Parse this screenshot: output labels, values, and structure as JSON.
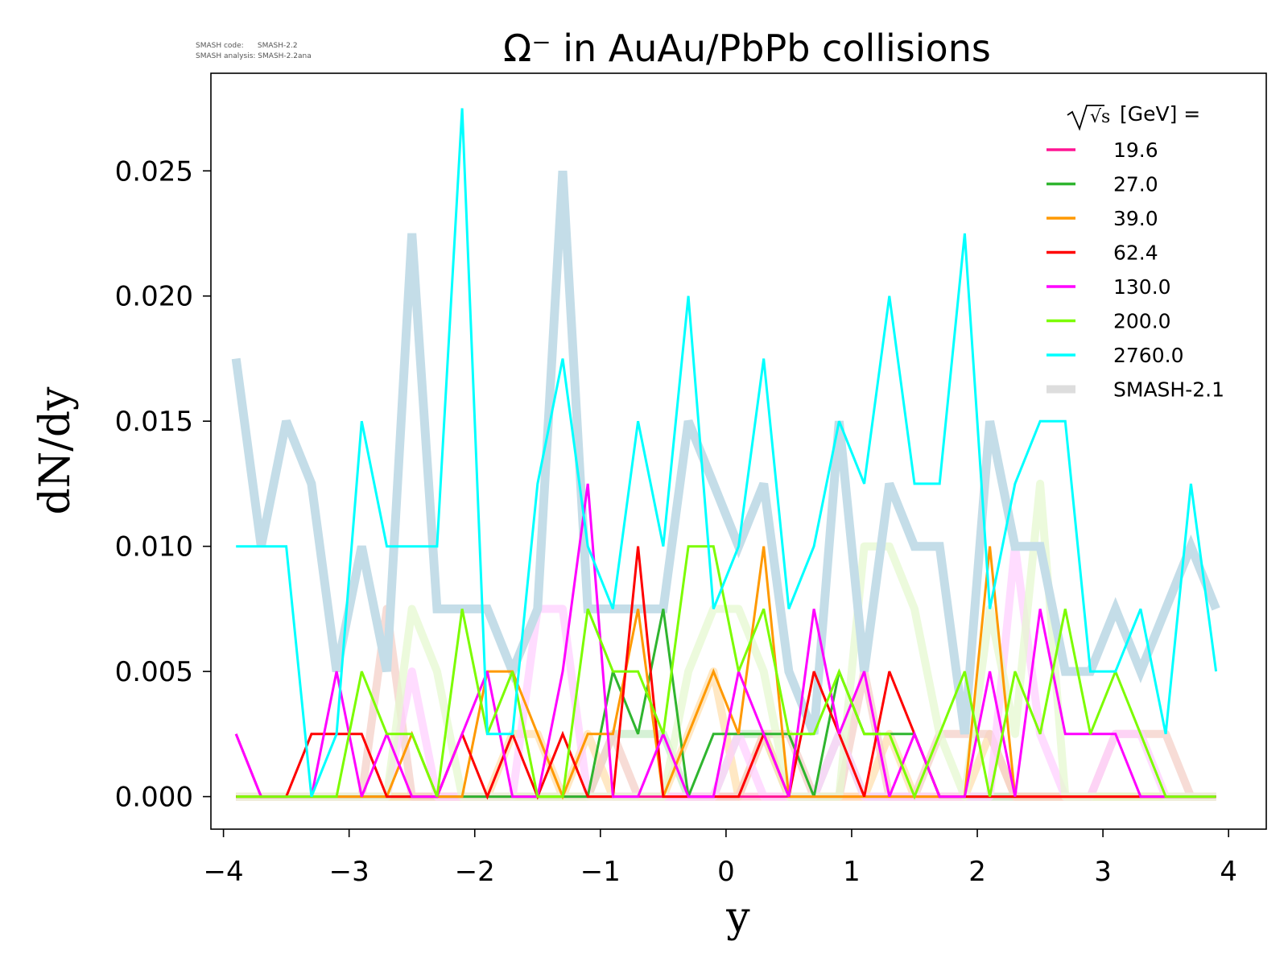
{
  "watermark": {
    "line1": "SMASH code:      SMASH-2.2",
    "line2": "SMASH analysis: SMASH-2.2ana"
  },
  "chart_data": {
    "type": "line",
    "title": "Ω⁻ in AuAu/PbPb collisions",
    "xlabel": "y",
    "ylabel": "dN/dy",
    "xlim": [
      -4.1,
      4.3
    ],
    "ylim": [
      -0.0013,
      0.0289
    ],
    "xticks": [
      -4,
      -3,
      -2,
      -1,
      0,
      1,
      2,
      3,
      4
    ],
    "xtick_labels": [
      "−4",
      "−3",
      "−2",
      "−1",
      "0",
      "1",
      "2",
      "3",
      "4"
    ],
    "yticks": [
      0.0,
      0.005,
      0.01,
      0.015,
      0.02,
      0.025
    ],
    "ytick_labels": [
      "0.000",
      "0.005",
      "0.010",
      "0.015",
      "0.020",
      "0.025"
    ],
    "grid": false,
    "legend": {
      "title_prefix": "√s",
      "title_suffix": "[GeV] =",
      "placement": "top-right"
    },
    "x": [
      -3.9,
      -3.7,
      -3.5,
      -3.3,
      -3.1,
      -2.9,
      -2.7,
      -2.5,
      -2.3,
      -2.1,
      -1.9,
      -1.7,
      -1.5,
      -1.3,
      -1.1,
      -0.9,
      -0.7,
      -0.5,
      -0.3,
      -0.1,
      0.1,
      0.3,
      0.5,
      0.7,
      0.9,
      1.1,
      1.3,
      1.5,
      1.7,
      1.9,
      2.1,
      2.3,
      2.5,
      2.7,
      2.9,
      3.1,
      3.3,
      3.5,
      3.7,
      3.9
    ],
    "series": [
      {
        "name": "19.6",
        "color": "#ff1493",
        "width": 3,
        "values": [
          0.0025,
          0,
          0,
          0,
          0,
          0,
          0,
          0,
          0,
          0,
          0,
          0,
          0,
          0,
          0,
          0,
          0,
          0,
          0,
          0,
          0,
          0,
          0,
          0,
          0,
          0,
          0,
          0,
          0,
          0,
          0,
          0,
          0,
          0,
          0,
          0,
          0,
          0,
          0,
          0
        ]
      },
      {
        "name": "27.0",
        "color": "#2fb52f",
        "width": 3,
        "values": [
          0,
          0,
          0,
          0,
          0,
          0,
          0,
          0,
          0,
          0,
          0,
          0,
          0,
          0,
          0,
          0.005,
          0.0025,
          0.0075,
          0,
          0.0025,
          0.0025,
          0.0025,
          0.0025,
          0,
          0.005,
          0.0025,
          0.0025,
          0.0025,
          0,
          0,
          0,
          0,
          0,
          0,
          0,
          0,
          0,
          0,
          0,
          0
        ]
      },
      {
        "name": "39.0",
        "color": "#ff9900",
        "width": 3,
        "values": [
          0,
          0,
          0,
          0,
          0,
          0,
          0,
          0.0025,
          0,
          0,
          0.005,
          0.005,
          0.0025,
          0,
          0.0025,
          0.0025,
          0.0075,
          0,
          0.0025,
          0.005,
          0.0025,
          0.01,
          0,
          0,
          0,
          0,
          0,
          0,
          0,
          0,
          0.01,
          0,
          0,
          0,
          0,
          0,
          0,
          0,
          0,
          0
        ]
      },
      {
        "name": "62.4",
        "color": "#ff0000",
        "width": 3,
        "values": [
          0,
          0,
          0,
          0.0025,
          0.0025,
          0.0025,
          0,
          0,
          0,
          0.0025,
          0,
          0.0025,
          0,
          0.0025,
          0,
          0,
          0.01,
          0,
          0,
          0,
          0,
          0.0025,
          0,
          0.005,
          0.0025,
          0,
          0.005,
          0.0025,
          0,
          0,
          0,
          0,
          0,
          0,
          0,
          0,
          0,
          0,
          0,
          0
        ]
      },
      {
        "name": "130.0",
        "color": "#ff00ff",
        "width": 3,
        "values": [
          0.0025,
          0,
          0,
          0,
          0.005,
          0,
          0.0025,
          0,
          0,
          0.0025,
          0.005,
          0,
          0,
          0.005,
          0.0125,
          0,
          0,
          0.0025,
          0,
          0,
          0.005,
          0.0025,
          0,
          0.0075,
          0.0025,
          0.005,
          0,
          0.0025,
          0,
          0,
          0.005,
          0,
          0.0075,
          0.0025,
          0.0025,
          0.0025,
          0,
          0,
          0,
          0
        ]
      },
      {
        "name": "200.0",
        "color": "#7cfc00",
        "width": 3,
        "values": [
          0,
          0,
          0,
          0,
          0,
          0.005,
          0.0025,
          0.0025,
          0,
          0.0075,
          0.0025,
          0.005,
          0,
          0,
          0.0075,
          0.005,
          0.005,
          0.0025,
          0.01,
          0.01,
          0.005,
          0.0075,
          0.0025,
          0.0025,
          0.005,
          0.0025,
          0.0025,
          0,
          0.0025,
          0.005,
          0,
          0.005,
          0.0025,
          0.0075,
          0.0025,
          0.005,
          0.0025,
          0,
          0,
          0
        ]
      },
      {
        "name": "2760.0",
        "color": "#00ffff",
        "width": 3,
        "values": [
          0.01,
          0.01,
          0.01,
          0,
          0.0025,
          0.015,
          0.01,
          0.01,
          0.01,
          0.0275,
          0.0025,
          0.0025,
          0.0125,
          0.0175,
          0.01,
          0.0075,
          0.015,
          0.01,
          0.02,
          0.0075,
          0.01,
          0.0175,
          0.0075,
          0.01,
          0.015,
          0.0125,
          0.02,
          0.0125,
          0.0125,
          0.0225,
          0.0075,
          0.0125,
          0.015,
          0.015,
          0.005,
          0.005,
          0.0075,
          0.0025,
          0.0125,
          0.005
        ]
      },
      {
        "name": "SMASH-2.1",
        "color": "#c4dde8",
        "width": 11,
        "legend_color": "#dddddd",
        "values": [
          0.0175,
          0.01,
          0.015,
          0.0125,
          0.005,
          0.01,
          0.005,
          0.0225,
          0.0075,
          0.0075,
          0.0075,
          0.005,
          0.0075,
          0.025,
          0.0075,
          0.0075,
          0.0075,
          0.0075,
          0.015,
          0.0125,
          0.01,
          0.0125,
          0.005,
          0.0025,
          0.015,
          0.005,
          0.0125,
          0.01,
          0.01,
          0.0025,
          0.015,
          0.01,
          0.01,
          0.005,
          0.005,
          0.0075,
          0.005,
          0.0075,
          0.01,
          0.0075
        ]
      }
    ],
    "reference_series": [
      {
        "color": "#ffbfd0",
        "width": 10,
        "values": [
          0,
          0,
          0,
          0,
          0,
          0,
          0,
          0,
          0,
          0,
          0,
          0,
          0,
          0,
          0,
          0,
          0,
          0,
          0,
          0,
          0,
          0,
          0,
          0,
          0,
          0,
          0,
          0,
          0,
          0,
          0,
          0,
          0,
          0,
          0,
          0,
          0,
          0,
          0,
          0
        ]
      },
      {
        "color": "#c8ecc8",
        "width": 10,
        "values": [
          0,
          0,
          0,
          0,
          0,
          0,
          0,
          0,
          0,
          0,
          0,
          0,
          0,
          0,
          0,
          0.0025,
          0.0025,
          0.0025,
          0,
          0,
          0.0025,
          0.0025,
          0,
          0,
          0.0025,
          0,
          0,
          0,
          0,
          0,
          0,
          0,
          0,
          0,
          0,
          0,
          0,
          0,
          0,
          0
        ]
      },
      {
        "color": "#ffe0b0",
        "width": 10,
        "values": [
          0,
          0,
          0,
          0,
          0,
          0,
          0,
          0,
          0,
          0,
          0,
          0.0025,
          0.0025,
          0,
          0.0025,
          0,
          0,
          0,
          0.0025,
          0.005,
          0,
          0.0025,
          0,
          0,
          0,
          0,
          0.0025,
          0,
          0,
          0,
          0.0025,
          0,
          0,
          0,
          0,
          0,
          0,
          0,
          0,
          0
        ]
      },
      {
        "color": "#f4d0c8",
        "width": 10,
        "values": [
          0,
          0,
          0,
          0,
          0,
          0,
          0.0075,
          0,
          0,
          0,
          0,
          0,
          0,
          0,
          0,
          0.0025,
          0,
          0,
          0,
          0,
          0,
          0.0025,
          0.0025,
          0,
          0,
          0.005,
          0,
          0,
          0.0025,
          0.0025,
          0.0025,
          0,
          0,
          0,
          0,
          0.0025,
          0.0025,
          0.0025,
          0,
          0
        ]
      },
      {
        "color": "#ffd0ff",
        "width": 10,
        "values": [
          0,
          0,
          0,
          0,
          0,
          0,
          0,
          0.005,
          0,
          0,
          0,
          0,
          0.0075,
          0.0075,
          0,
          0,
          0,
          0,
          0,
          0,
          0.0025,
          0,
          0,
          0,
          0.0025,
          0,
          0,
          0,
          0,
          0,
          0,
          0.01,
          0.0025,
          0,
          0,
          0.0025,
          0.0025,
          0,
          0,
          0
        ]
      },
      {
        "color": "#e6f8d0",
        "width": 10,
        "values": [
          0,
          0,
          0,
          0,
          0,
          0,
          0,
          0.0075,
          0.005,
          0,
          0,
          0,
          0,
          0,
          0,
          0,
          0,
          0,
          0.005,
          0.0075,
          0.0075,
          0.005,
          0,
          0,
          0,
          0.01,
          0.01,
          0.0075,
          0.0025,
          0,
          0.0075,
          0.0025,
          0.0125,
          0,
          0,
          0,
          0,
          0,
          0,
          0
        ]
      }
    ]
  }
}
